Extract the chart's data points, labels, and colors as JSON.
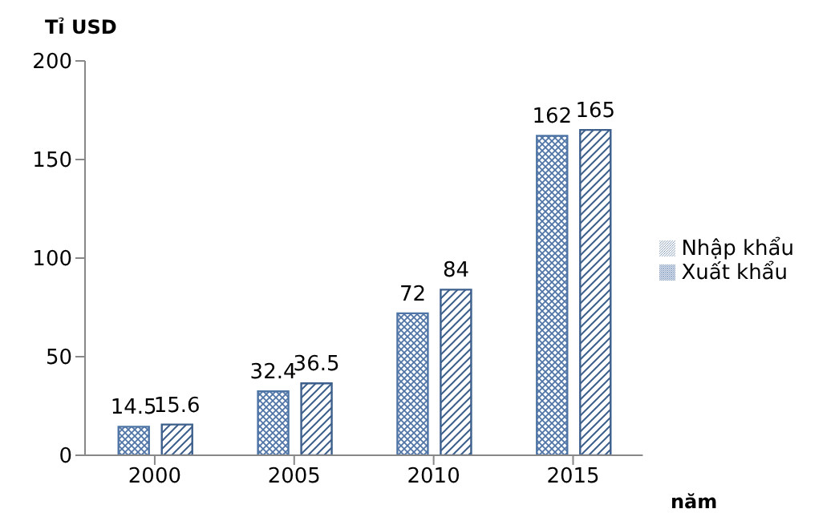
{
  "chart_data": {
    "type": "bar",
    "ylabel": "Tỉ USD",
    "xlabel": "năm",
    "categories": [
      "2000",
      "2005",
      "2010",
      "2015"
    ],
    "series": [
      {
        "name": "Xuất khẩu",
        "color": "#4f75a6",
        "values": [
          14.5,
          32.4,
          72,
          162
        ]
      },
      {
        "name": "Nhập khẩu",
        "color": "#3d5f8c",
        "values": [
          15.6,
          36.5,
          84,
          165
        ]
      }
    ],
    "ylim": [
      0,
      200
    ],
    "yticks": [
      0,
      50,
      100,
      150,
      200
    ],
    "grid": false,
    "legend": "right",
    "data_labels": true
  }
}
